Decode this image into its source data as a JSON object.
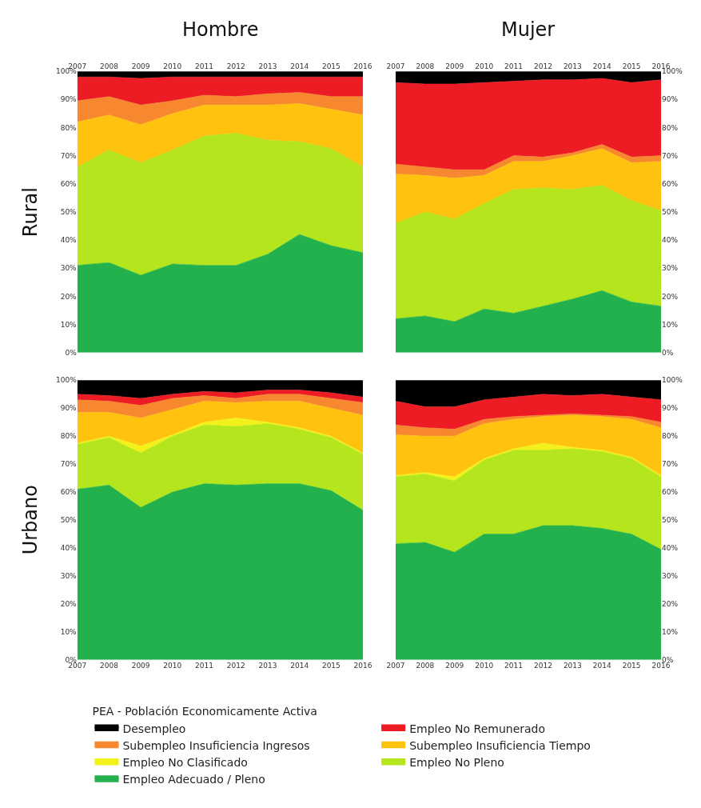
{
  "chart_data": [
    {
      "type": "area",
      "stacked": true,
      "title": "Hombre",
      "ylabel": "Rural",
      "legend": "bottom",
      "legend_title": "PEA - Población Economicamente Activa",
      "grid": false,
      "x": [
        2007,
        2008,
        2009,
        2010,
        2011,
        2012,
        2013,
        2014,
        2015,
        2016
      ],
      "xlim": [
        2007,
        2016
      ],
      "xticks": [
        2007,
        2008,
        2009,
        2010,
        2011,
        2012,
        2013,
        2014,
        2015,
        2016
      ],
      "ylim": [
        0,
        100
      ],
      "yticks": [
        {
          "value": 0,
          "label": "0%"
        },
        {
          "value": 10,
          "label": "10%"
        },
        {
          "value": 20,
          "label": "20%"
        },
        {
          "value": 30,
          "label": "30%"
        },
        {
          "value": 40,
          "label": "40%"
        },
        {
          "value": 50,
          "label": "50%"
        },
        {
          "value": 60,
          "label": "60%"
        },
        {
          "value": 70,
          "label": "70%"
        },
        {
          "value": 80,
          "label": "80%"
        },
        {
          "value": 90,
          "label": "90%"
        },
        {
          "value": 100,
          "label": "100%"
        }
      ],
      "series": [
        {
          "name": "Empleo Adecuado / Pleno",
          "color": "#22b14c",
          "values": [
            31,
            32,
            27.5,
            31.5,
            31,
            31,
            35,
            42,
            38,
            35.5
          ]
        },
        {
          "name": "Empleo No Pleno",
          "color": "#b5e61d",
          "values": [
            35,
            40,
            40,
            40.5,
            46,
            47,
            40.5,
            33,
            34.5,
            30.5
          ]
        },
        {
          "name": "Subempleo Insuficiencia Tiempo",
          "color": "#ffc20e",
          "values": [
            16,
            12.5,
            13.5,
            13,
            11,
            10,
            12.5,
            13.5,
            14,
            18.5
          ]
        },
        {
          "name": "Subempleo Insuficiencia Ingresos",
          "color": "#f7882f",
          "values": [
            7.5,
            6.5,
            7,
            4.5,
            3.5,
            3,
            4,
            4,
            4.5,
            6.5
          ]
        },
        {
          "name": "Empleo No Remunerado",
          "color": "#ed1c24",
          "values": [
            8.5,
            7,
            9.5,
            8.5,
            6.5,
            7,
            6,
            5.5,
            7,
            7
          ]
        },
        {
          "name": "Desempleo",
          "color": "#000000",
          "values": [
            2,
            2,
            2.5,
            2,
            2,
            2,
            2,
            2,
            2,
            2
          ]
        }
      ]
    },
    {
      "type": "area",
      "stacked": true,
      "title": "Mujer",
      "legend": "bottom",
      "grid": false,
      "x": [
        2007,
        2008,
        2009,
        2010,
        2011,
        2012,
        2013,
        2014,
        2015,
        2016
      ],
      "xlim": [
        2007,
        2016
      ],
      "xticks": [
        2007,
        2008,
        2009,
        2010,
        2011,
        2012,
        2013,
        2014,
        2015,
        2016
      ],
      "ylim": [
        0,
        100
      ],
      "yticks": [
        {
          "value": 0,
          "label": "0%"
        },
        {
          "value": 10,
          "label": "10%"
        },
        {
          "value": 20,
          "label": "20%"
        },
        {
          "value": 30,
          "label": "30%"
        },
        {
          "value": 40,
          "label": "40%"
        },
        {
          "value": 50,
          "label": "50%"
        },
        {
          "value": 60,
          "label": "60%"
        },
        {
          "value": 70,
          "label": "70%"
        },
        {
          "value": 80,
          "label": "80%"
        },
        {
          "value": 90,
          "label": "90%"
        },
        {
          "value": 100,
          "label": "100%"
        }
      ],
      "series": [
        {
          "name": "Empleo Adecuado / Pleno",
          "color": "#22b14c",
          "values": [
            12,
            13,
            11,
            15.5,
            14,
            16.5,
            19,
            22,
            18,
            16.5
          ]
        },
        {
          "name": "Empleo No Pleno",
          "color": "#b5e61d",
          "values": [
            34,
            37,
            36.5,
            37.5,
            44,
            42,
            39,
            37.5,
            36,
            34
          ]
        },
        {
          "name": "Subempleo Insuficiencia Tiempo",
          "color": "#ffc20e",
          "values": [
            17.5,
            13,
            14.5,
            10,
            10,
            9.5,
            12,
            13,
            13.5,
            17.5
          ]
        },
        {
          "name": "Subempleo Insuficiencia Ingresos",
          "color": "#f7882f",
          "values": [
            3.5,
            3,
            3,
            2,
            2,
            1.5,
            1,
            1.5,
            2,
            2
          ]
        },
        {
          "name": "Empleo No Remunerado",
          "color": "#ed1c24",
          "values": [
            29,
            29.5,
            30.5,
            31,
            26.5,
            27.5,
            26,
            23.5,
            26.5,
            27
          ]
        },
        {
          "name": "Desempleo",
          "color": "#000000",
          "values": [
            4,
            4.5,
            4.5,
            4,
            3.5,
            3,
            3,
            2.5,
            4,
            3
          ]
        }
      ]
    },
    {
      "type": "area",
      "stacked": true,
      "ylabel": "Urbano",
      "legend": "bottom",
      "grid": false,
      "x": [
        2007,
        2008,
        2009,
        2010,
        2011,
        2012,
        2013,
        2014,
        2015,
        2016
      ],
      "xlim": [
        2007,
        2016
      ],
      "xticks": [
        2007,
        2008,
        2009,
        2010,
        2011,
        2012,
        2013,
        2014,
        2015,
        2016
      ],
      "ylim": [
        0,
        100
      ],
      "yticks": [
        {
          "value": 0,
          "label": "0%"
        },
        {
          "value": 10,
          "label": "10%"
        },
        {
          "value": 20,
          "label": "20%"
        },
        {
          "value": 30,
          "label": "30%"
        },
        {
          "value": 40,
          "label": "40%"
        },
        {
          "value": 50,
          "label": "50%"
        },
        {
          "value": 60,
          "label": "60%"
        },
        {
          "value": 70,
          "label": "70%"
        },
        {
          "value": 80,
          "label": "80%"
        },
        {
          "value": 90,
          "label": "90%"
        },
        {
          "value": 100,
          "label": "100%"
        }
      ],
      "series": [
        {
          "name": "Empleo Adecuado / Pleno",
          "color": "#22b14c",
          "values": [
            61,
            62.5,
            54.5,
            60,
            63,
            62.5,
            63,
            63,
            60.5,
            53.5
          ]
        },
        {
          "name": "Empleo No Pleno",
          "color": "#b5e61d",
          "values": [
            16,
            17,
            19.5,
            20,
            21,
            21,
            21.5,
            19.5,
            19,
            20
          ]
        },
        {
          "name": "Empleo No Clasificado",
          "color": "#f2f21a",
          "values": [
            0.5,
            0.5,
            2.5,
            0.5,
            1,
            3,
            0.5,
            0.5,
            0.5,
            0.5
          ]
        },
        {
          "name": "Subempleo Insuficiencia Tiempo",
          "color": "#ffc20e",
          "values": [
            11,
            8.5,
            10,
            9,
            7.5,
            5.5,
            7.5,
            9.5,
            10,
            13.5
          ]
        },
        {
          "name": "Subempleo Insuficiencia Ingresos",
          "color": "#f7882f",
          "values": [
            4.5,
            4,
            4.5,
            4,
            2,
            1.5,
            2.5,
            2.5,
            3.5,
            4.5
          ]
        },
        {
          "name": "Empleo No Remunerado",
          "color": "#ed1c24",
          "values": [
            2,
            2,
            2.5,
            1.5,
            1.5,
            2,
            1.5,
            1.5,
            2,
            2
          ]
        },
        {
          "name": "Desempleo",
          "color": "#000000",
          "values": [
            5,
            5.5,
            6.5,
            5,
            4,
            4.5,
            3.5,
            3.5,
            4.5,
            6
          ]
        }
      ]
    },
    {
      "type": "area",
      "stacked": true,
      "legend": "bottom",
      "grid": false,
      "x": [
        2007,
        2008,
        2009,
        2010,
        2011,
        2012,
        2013,
        2014,
        2015,
        2016
      ],
      "xlim": [
        2007,
        2016
      ],
      "xticks": [
        2007,
        2008,
        2009,
        2010,
        2011,
        2012,
        2013,
        2014,
        2015,
        2016
      ],
      "ylim": [
        0,
        100
      ],
      "yticks": [
        {
          "value": 0,
          "label": "0%"
        },
        {
          "value": 10,
          "label": "10%"
        },
        {
          "value": 20,
          "label": "20%"
        },
        {
          "value": 30,
          "label": "30%"
        },
        {
          "value": 40,
          "label": "40%"
        },
        {
          "value": 50,
          "label": "50%"
        },
        {
          "value": 60,
          "label": "60%"
        },
        {
          "value": 70,
          "label": "70%"
        },
        {
          "value": 80,
          "label": "80%"
        },
        {
          "value": 90,
          "label": "90%"
        },
        {
          "value": 100,
          "label": "100%"
        }
      ],
      "series": [
        {
          "name": "Empleo Adecuado / Pleno",
          "color": "#22b14c",
          "values": [
            41.5,
            42,
            38.5,
            45,
            45,
            48,
            48,
            47,
            45,
            39.5
          ]
        },
        {
          "name": "Empleo No Pleno",
          "color": "#b5e61d",
          "values": [
            24,
            24.5,
            25.5,
            26.5,
            30,
            27,
            27.5,
            27.5,
            27,
            26
          ]
        },
        {
          "name": "Empleo No Clasificado",
          "color": "#f2f21a",
          "values": [
            0.5,
            0.5,
            1.5,
            0.5,
            0.5,
            2.5,
            0.5,
            0.5,
            0.5,
            0.5
          ]
        },
        {
          "name": "Subempleo Insuficiencia Tiempo",
          "color": "#ffc20e",
          "values": [
            14.5,
            13,
            14.5,
            12.5,
            10.5,
            9.5,
            11.5,
            12,
            13.5,
            17
          ]
        },
        {
          "name": "Subempleo Insuficiencia Ingresos",
          "color": "#f7882f",
          "values": [
            3.5,
            3,
            2.5,
            1.5,
            1,
            0.5,
            0.5,
            0.5,
            1,
            2
          ]
        },
        {
          "name": "Empleo No Remunerado",
          "color": "#ed1c24",
          "values": [
            8.5,
            7.5,
            8,
            7,
            7,
            7.5,
            6.5,
            7.5,
            7,
            8
          ]
        },
        {
          "name": "Desempleo",
          "color": "#000000",
          "values": [
            7.5,
            9.5,
            9.5,
            7,
            6,
            5,
            5.5,
            5,
            6,
            7
          ]
        }
      ]
    }
  ]
}
